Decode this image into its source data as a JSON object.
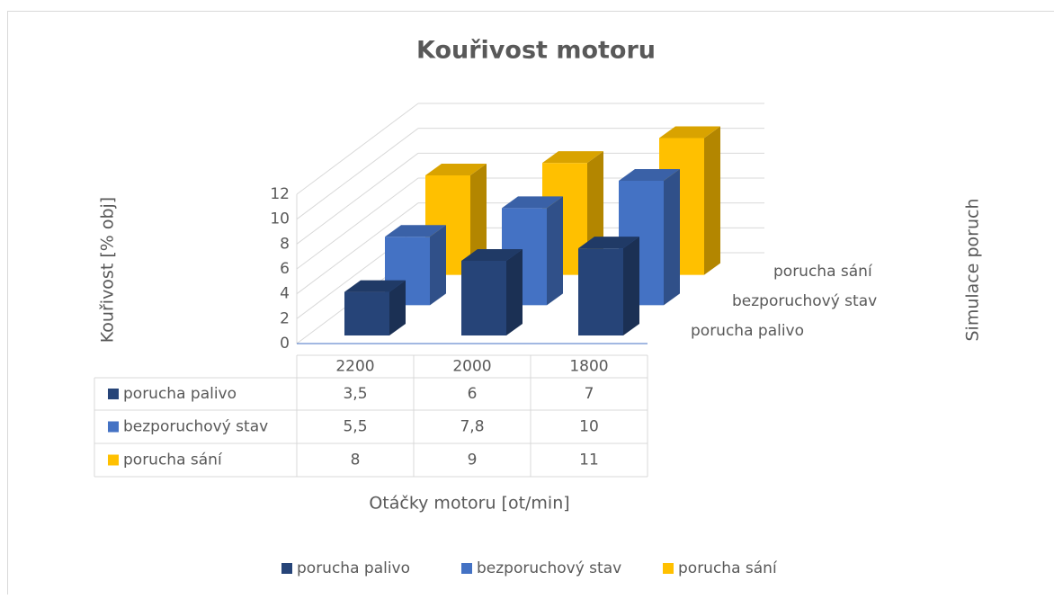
{
  "chart_data": {
    "type": "bar3d",
    "title": "Kouřivost motoru",
    "x_label": "Otáčky motoru [ot/min]",
    "y_label": "Kouřivost [% obj]",
    "z_label": "Simulace poruch",
    "categories": [
      "2200",
      "2000",
      "1800"
    ],
    "series": [
      {
        "name": "porucha palivo",
        "color": "#264478",
        "values": [
          3.5,
          6,
          7
        ],
        "value_labels": [
          "3,5",
          "6",
          "7"
        ]
      },
      {
        "name": "bezporuchový stav",
        "color": "#4472c4",
        "values": [
          5.5,
          7.8,
          10
        ],
        "value_labels": [
          "5,5",
          "7,8",
          "10"
        ]
      },
      {
        "name": "porucha sání",
        "color": "#ffc000",
        "values": [
          8,
          9,
          11
        ],
        "value_labels": [
          "8",
          "9",
          "11"
        ]
      }
    ],
    "ylim": [
      0,
      12
    ],
    "yticks": [
      0,
      2,
      4,
      6,
      8,
      10,
      12
    ],
    "grid": true,
    "legend": "bottom",
    "data_table": true
  }
}
